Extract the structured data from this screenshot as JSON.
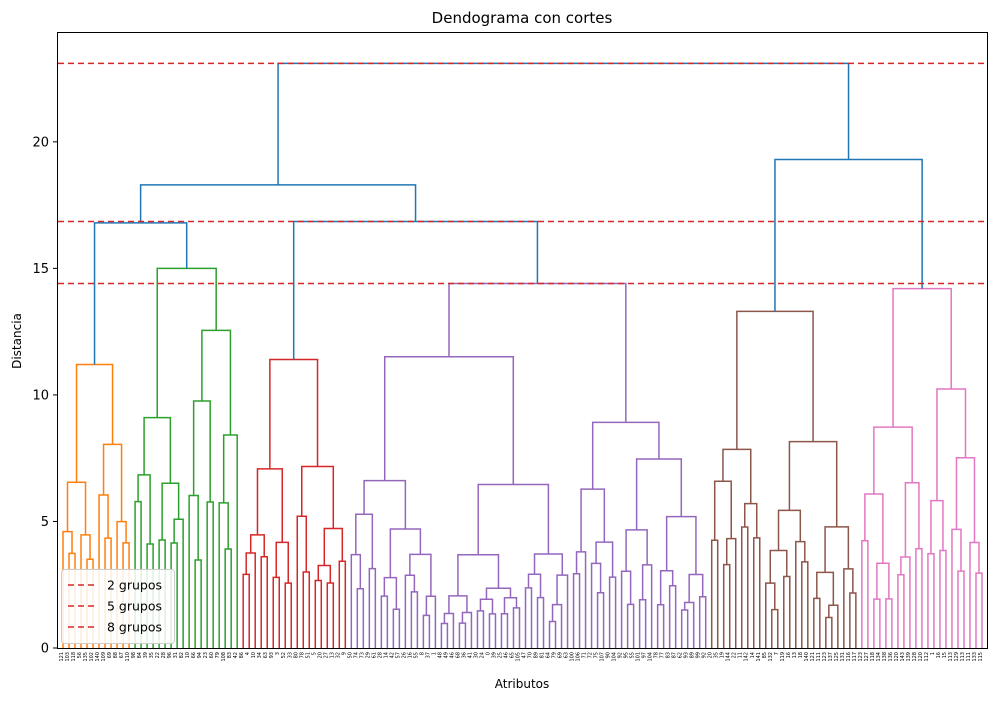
{
  "chart_data": {
    "type": "dendrogram",
    "title": "Dendograma con cortes",
    "xlabel": "Atributos",
    "ylabel": "Distancia",
    "ylim": [
      0,
      24.3
    ],
    "yticks": [
      0,
      5,
      10,
      15,
      20
    ],
    "grid": false,
    "legend_position": "bottom-left",
    "cuts": [
      {
        "label": "2 grupos",
        "y": 23.1,
        "color": "#d62728"
      },
      {
        "label": "5 grupos",
        "y": 16.85,
        "color": "#d62728"
      },
      {
        "label": "8 grupos",
        "y": 14.4,
        "color": "#d62728"
      }
    ],
    "clusters": [
      {
        "color": "#ff7f0e",
        "leaves": [
          "121",
          "103",
          "118",
          "56",
          "135",
          "102",
          "140",
          "109",
          "69",
          "88",
          "67",
          "110"
        ],
        "height": 11.2
      },
      {
        "color": "#2ca02c",
        "leaves": [
          "98",
          "84",
          "39",
          "35",
          "22",
          "28",
          "96",
          "31",
          "82",
          "10",
          "66",
          "94",
          "23",
          "60",
          "79",
          "108",
          "83",
          "42"
        ],
        "height": 15.0
      },
      {
        "color": "#d62728",
        "leaves": [
          "86",
          "4",
          "10",
          "34",
          "63",
          "93",
          "3",
          "52",
          "33",
          "80",
          "78",
          "51",
          "5",
          "20",
          "27",
          "13",
          "32",
          "9"
        ],
        "height": 11.4
      },
      {
        "color": "#9467bd",
        "leaves": [
          "50",
          "74",
          "73",
          "29",
          "61",
          "28",
          "14",
          "42",
          "57",
          "26",
          "16",
          "55",
          "8",
          "37",
          "1",
          "48",
          "49",
          "46",
          "68",
          "36",
          "41",
          "30",
          "24",
          "0",
          "39",
          "25",
          "46",
          "65",
          "105",
          "47",
          "70",
          "89",
          "81",
          "64",
          "79",
          "69",
          "63",
          "100",
          "106",
          "71",
          "72",
          "75",
          "107",
          "90",
          "104",
          "92",
          "95",
          "55",
          "101",
          "97",
          "104",
          "78",
          "77",
          "83",
          "87",
          "62",
          "93",
          "89",
          "99",
          "92"
        ],
        "height": 14.4
      },
      {
        "color": "#8c564b",
        "leaves": [
          "20",
          "35",
          "19",
          "144",
          "22",
          "11",
          "142",
          "14",
          "141",
          "85",
          "132",
          "7",
          "119",
          "16",
          "13",
          "18",
          "140",
          "121",
          "111",
          "123",
          "137",
          "125",
          "131",
          "116",
          "117"
        ],
        "height": 13.3
      },
      {
        "color": "#e377c2",
        "leaves": [
          "123",
          "127",
          "118",
          "134",
          "138",
          "136",
          "120",
          "143",
          "139",
          "128",
          "120",
          "112",
          "1",
          "16",
          "15",
          "113",
          "129",
          "113",
          "111",
          "133",
          "115"
        ],
        "height": 14.2
      }
    ],
    "merges": [
      {
        "between": "naranja + verde",
        "height": 16.8
      },
      {
        "between": "rojo + morado",
        "height": 16.85
      },
      {
        "between": "grupo izquierdo",
        "height": 18.3
      },
      {
        "between": "marrón + rosa",
        "height": 19.3
      },
      {
        "between": "raíz",
        "height": 23.1
      }
    ],
    "link_color": "#1f77b4"
  }
}
